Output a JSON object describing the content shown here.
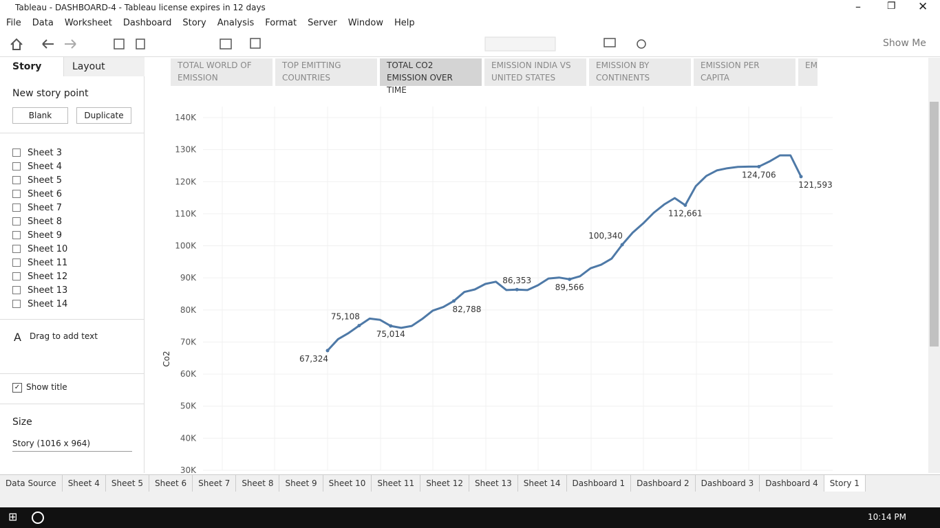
{
  "window": {
    "title": "Tableau - DASHBOARD-4 - Tableau license expires in 12 days"
  },
  "menu": [
    "File",
    "Data",
    "Worksheet",
    "Dashboard",
    "Story",
    "Analysis",
    "Format",
    "Server",
    "Window",
    "Help"
  ],
  "toolbar": {
    "show_me": "Show Me"
  },
  "left_pane": {
    "tabs": [
      "Story",
      "Layout"
    ],
    "new_story_point": "New story point",
    "buttons": [
      "Blank",
      "Duplicate"
    ],
    "sheets": [
      "Sheet 3",
      "Sheet 4",
      "Sheet 5",
      "Sheet 6",
      "Sheet 7",
      "Sheet 8",
      "Sheet 9",
      "Sheet 10",
      "Sheet 11",
      "Sheet 12",
      "Sheet 13",
      "Sheet 14"
    ],
    "drag_text": "Drag to add text",
    "show_title": "Show title",
    "size_label": "Size",
    "size_value": "Story (1016 x 964)"
  },
  "story_points": [
    "TOTAL WORLD OF EMISSION",
    "TOP EMITTING COUNTRIES",
    "TOTAL CO2 EMISSION OVER TIME",
    "EMISSION INDIA VS UNITED STATES",
    "EMISSION BY CONTINENTS",
    "EMISSION PER CAPITA",
    "EM"
  ],
  "chart_data": {
    "type": "line",
    "y_label": "Co2",
    "color": "#4e79a7",
    "grid": true,
    "ylim": [
      30000,
      140000
    ],
    "yticks": [
      {
        "value": 30000,
        "label": "30K"
      },
      {
        "value": 40000,
        "label": "40K"
      },
      {
        "value": 50000,
        "label": "50K"
      },
      {
        "value": 60000,
        "label": "60K"
      },
      {
        "value": 70000,
        "label": "70K"
      },
      {
        "value": 80000,
        "label": "80K"
      },
      {
        "value": 90000,
        "label": "90K"
      },
      {
        "value": 100000,
        "label": "100K"
      },
      {
        "value": 110000,
        "label": "110K"
      },
      {
        "value": 120000,
        "label": "120K"
      },
      {
        "value": 130000,
        "label": "130K"
      },
      {
        "value": 140000,
        "label": "140K"
      }
    ],
    "values": [
      67324,
      70900,
      72800,
      75108,
      77300,
      76900,
      75014,
      74400,
      75000,
      77200,
      79800,
      80900,
      82788,
      85600,
      86400,
      88100,
      88800,
      86200,
      86353,
      86200,
      87700,
      89800,
      90100,
      89566,
      90500,
      93000,
      94100,
      96000,
      100340,
      104100,
      107000,
      110300,
      112900,
      114900,
      112661,
      118600,
      121800,
      123500,
      124200,
      124600,
      124700,
      124706,
      126300,
      128200,
      128200,
      121593
    ],
    "value_labels": [
      "67,324",
      null,
      null,
      "75,108",
      null,
      null,
      "75,014",
      null,
      null,
      null,
      null,
      null,
      "82,788",
      null,
      null,
      null,
      null,
      null,
      "86,353",
      null,
      null,
      null,
      null,
      "89,566",
      null,
      null,
      null,
      null,
      "100,340",
      null,
      null,
      null,
      null,
      null,
      "112,661",
      null,
      null,
      null,
      null,
      null,
      null,
      "124,706",
      null,
      null,
      null,
      "121,593"
    ]
  },
  "sheet_tabs": [
    "Data Source",
    "Sheet 4",
    "Sheet 5",
    "Sheet 6",
    "Sheet 7",
    "Sheet 8",
    "Sheet 9",
    "Sheet 10",
    "Sheet 11",
    "Sheet 12",
    "Sheet 13",
    "Sheet 14",
    "Dashboard 1",
    "Dashboard 2",
    "Dashboard 3",
    "Dashboard 4",
    "Story 1"
  ],
  "taskbar": {
    "time": "10:14 PM"
  }
}
